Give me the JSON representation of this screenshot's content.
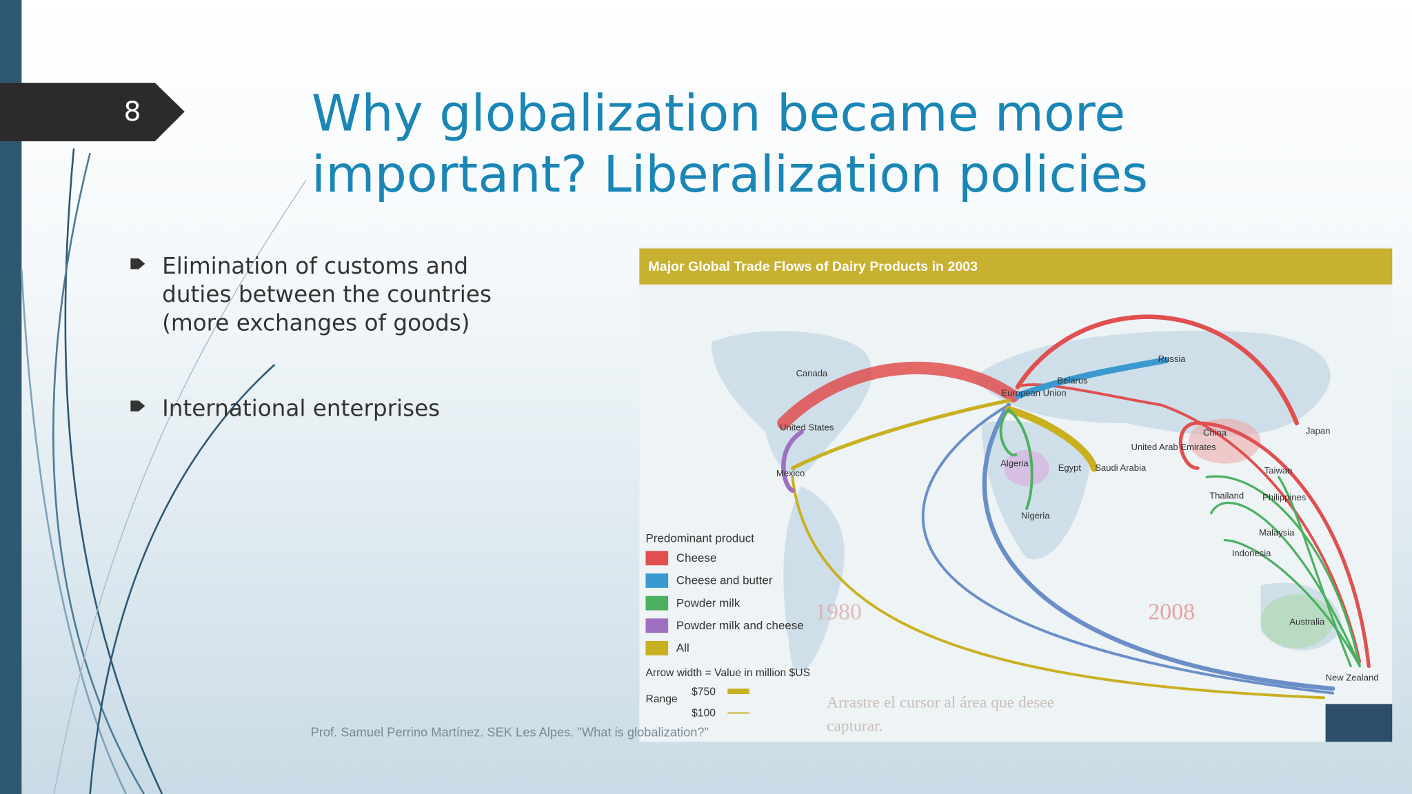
{
  "slide_number": "8",
  "title": {
    "lines": [
      "Why globalization became more",
      "important? Liberalization policies"
    ]
  },
  "bullets": [
    [
      "Elimination of customs and",
      "duties between the countries",
      "(more exchanges of goods)"
    ],
    [
      "International enterprises"
    ]
  ],
  "footer": "Prof. Samuel Perrino Martínez. SEK Les Alpes. \"What is globalization?\"",
  "figure": {
    "title": "Major Global Trade Flows of Dairy Products in 2003",
    "labels": [
      "Canada",
      "United States",
      "Mexico",
      "European Union",
      "Belarus",
      "Russia",
      "Algeria",
      "Egypt",
      "Saudi Arabia",
      "United Arab Emirates",
      "Nigeria",
      "China",
      "Japan",
      "Taiwan",
      "Thailand",
      "Philippines",
      "Malaysia",
      "Indonesia",
      "Australia",
      "New Zealand"
    ],
    "legend": {
      "title": "Predominant product",
      "items": [
        {
          "name": "Cheese",
          "color": "#e05050"
        },
        {
          "name": "Cheese and butter",
          "color": "#3a9ad0"
        },
        {
          "name": "Powder milk",
          "color": "#4cb060"
        },
        {
          "name": "Powder milk and cheese",
          "color": "#a070c0"
        },
        {
          "name": "All",
          "color": "#c8b020"
        }
      ]
    },
    "arrow_note": "Arrow width = Value in million $US",
    "range_label": "Range",
    "range_values": [
      "$750",
      "$100"
    ],
    "watermarks": [
      "1980",
      "2008",
      "Arrastre el cursor al área que desee",
      "capturar."
    ]
  }
}
